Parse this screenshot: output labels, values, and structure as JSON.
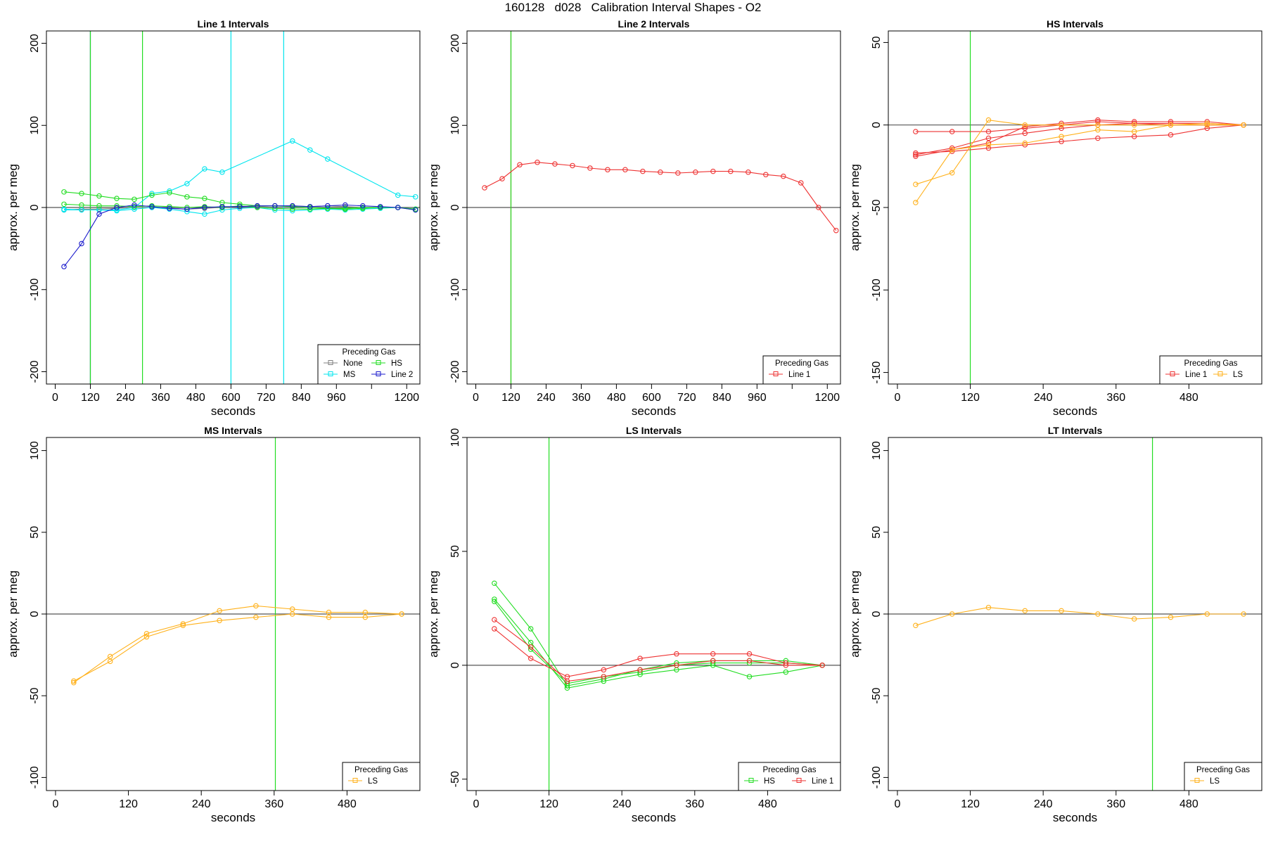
{
  "figure": {
    "title": "160128   d028   Calibration Interval Shapes - O2"
  },
  "colors": {
    "None": "#808080",
    "MS": "#00e5ee",
    "HS": "#22dd22",
    "Line 2": "#1a1acc",
    "Line 1": "#ee3333",
    "LS": "#ffb11b",
    "axis": "#000000",
    "zero": "#555555"
  },
  "chart_data": [
    {
      "title": "Line 1 Intervals",
      "type": "line",
      "xlabel": "seconds",
      "ylabel": "approx. per meg",
      "xlim": [
        -30,
        1245
      ],
      "ylim": [
        -215,
        215
      ],
      "xticks": [
        0,
        120,
        240,
        360,
        480,
        600,
        720,
        840,
        960,
        1080,
        1200
      ],
      "xtick_labels": [
        "0",
        "120",
        "240",
        "360",
        "480",
        "600",
        "720",
        "840",
        "960",
        "",
        "1200"
      ],
      "yticks": [
        -200,
        -100,
        0,
        100,
        200
      ],
      "ytick_labels": [
        "-200",
        "-100",
        "0",
        "100",
        "200"
      ],
      "vlines": [
        {
          "x": 120,
          "color": "#1a1acc"
        },
        {
          "x": 120,
          "color": "#22dd22"
        },
        {
          "x": 298,
          "color": "#22dd22"
        },
        {
          "x": 600,
          "color": "#00e5ee"
        },
        {
          "x": 780,
          "color": "#00e5ee"
        }
      ],
      "legend": {
        "title": "Preceding Gas",
        "position": "bottom-right",
        "columns": 2,
        "entries": [
          "None",
          "HS",
          "MS",
          "Line 2"
        ]
      },
      "series": [
        {
          "name": "None",
          "color": "#808080",
          "x": [
            30,
            90,
            150,
            210,
            270,
            330,
            390,
            450,
            510,
            570,
            630,
            690,
            750,
            810,
            870,
            930,
            990,
            1050,
            1110,
            1170,
            1230
          ],
          "y": [
            -3,
            -2,
            -2,
            -1,
            0,
            0,
            -1,
            -2,
            -1,
            0,
            1,
            1,
            2,
            2,
            1,
            2,
            1,
            0,
            0,
            0,
            -2
          ]
        },
        {
          "name": "MS",
          "color": "#00e5ee",
          "x": [
            30,
            90,
            150,
            210,
            270,
            330,
            390,
            450,
            510,
            570,
            810,
            870,
            930,
            1170,
            1230
          ],
          "y": [
            -2,
            -3,
            -3,
            -3,
            0,
            17,
            20,
            29,
            47,
            43,
            81,
            70,
            59,
            15,
            13
          ]
        },
        {
          "name": "MS",
          "color": "#00e5ee",
          "x": [
            30,
            90,
            150,
            210,
            270,
            330,
            390,
            450,
            510,
            570,
            630,
            690,
            750,
            810,
            870,
            930,
            990,
            1050,
            1110,
            1170,
            1230
          ],
          "y": [
            -3,
            -3,
            -3,
            -4,
            -2,
            0,
            -2,
            -5,
            -8,
            -3,
            -1,
            0,
            -3,
            -4,
            -3,
            -2,
            -3,
            -2,
            -1,
            0,
            -2
          ]
        },
        {
          "name": "HS",
          "color": "#22dd22",
          "x": [
            30,
            90,
            150,
            210,
            270,
            330,
            390,
            450,
            510,
            570,
            630,
            690,
            750,
            810,
            870,
            930,
            990,
            1050,
            1110,
            1170,
            1230
          ],
          "y": [
            19,
            17,
            14,
            11,
            10,
            15,
            18,
            13,
            11,
            6,
            4,
            2,
            2,
            1,
            0,
            -1,
            -1,
            0,
            0,
            0,
            -3
          ]
        },
        {
          "name": "HS",
          "color": "#22dd22",
          "x": [
            30,
            90,
            150,
            210,
            270,
            330,
            390,
            450,
            510,
            570,
            630,
            690,
            750,
            810,
            870,
            930,
            990,
            1050,
            1110,
            1170,
            1230
          ],
          "y": [
            4,
            3,
            2,
            2,
            1,
            2,
            1,
            0,
            1,
            0,
            2,
            0,
            -1,
            -2,
            -2,
            -1,
            -2,
            -1,
            0,
            0,
            -2
          ]
        },
        {
          "name": "Line 2",
          "color": "#1a1acc",
          "x": [
            30,
            90,
            150,
            210,
            270,
            330,
            390,
            450,
            510,
            570,
            630,
            690,
            750,
            810,
            870,
            930,
            990,
            1050,
            1110,
            1170,
            1230
          ],
          "y": [
            -72,
            -44,
            -8,
            0,
            3,
            1,
            -1,
            -2,
            0,
            1,
            1,
            2,
            2,
            2,
            1,
            2,
            3,
            2,
            1,
            0,
            -3
          ]
        }
      ]
    },
    {
      "title": "Line 2 Intervals",
      "type": "line",
      "xlabel": "seconds",
      "ylabel": "approx. per meg",
      "xlim": [
        -30,
        1245
      ],
      "ylim": [
        -215,
        215
      ],
      "xticks": [
        0,
        120,
        240,
        360,
        480,
        600,
        720,
        840,
        960,
        1080,
        1200
      ],
      "xtick_labels": [
        "0",
        "120",
        "240",
        "360",
        "480",
        "600",
        "720",
        "840",
        "960",
        "",
        "1200"
      ],
      "yticks": [
        -200,
        -100,
        0,
        100,
        200
      ],
      "ytick_labels": [
        "-200",
        "-100",
        "0",
        "100",
        "200"
      ],
      "vlines": [
        {
          "x": 120,
          "color": "#ee3333"
        },
        {
          "x": 120,
          "color": "#22dd22"
        }
      ],
      "legend": {
        "title": "Preceding Gas",
        "position": "bottom-right",
        "columns": 1,
        "entries": [
          "Line 1"
        ]
      },
      "series": [
        {
          "name": "Line 1",
          "color": "#ee3333",
          "x": [
            30,
            90,
            150,
            210,
            270,
            330,
            390,
            450,
            510,
            570,
            630,
            690,
            750,
            810,
            870,
            930,
            990,
            1050,
            1110,
            1170,
            1230
          ],
          "y": [
            24,
            35,
            52,
            55,
            53,
            51,
            48,
            46,
            46,
            44,
            43,
            42,
            43,
            44,
            44,
            43,
            40,
            38,
            30,
            0,
            -28
          ]
        }
      ]
    },
    {
      "title": "HS Intervals",
      "type": "line",
      "xlabel": "seconds",
      "ylabel": "approx. per meg",
      "xlim": [
        -15,
        600
      ],
      "ylim": [
        -157,
        57
      ],
      "xticks": [
        0,
        120,
        240,
        360,
        480
      ],
      "xtick_labels": [
        "0",
        "120",
        "240",
        "360",
        "480"
      ],
      "yticks": [
        -150,
        -100,
        -50,
        0,
        50
      ],
      "ytick_labels": [
        "-150",
        "-100",
        "-50",
        "0",
        "50"
      ],
      "vlines": [
        {
          "x": 120,
          "color": "#22dd22"
        }
      ],
      "legend": {
        "title": "Preceding Gas",
        "position": "bottom-right",
        "columns": 2,
        "entries": [
          "Line 1",
          "LS"
        ]
      },
      "series": [
        {
          "name": "Line 1",
          "color": "#ee3333",
          "x": [
            30,
            90,
            150,
            210,
            270,
            330,
            390,
            450,
            510,
            570
          ],
          "y": [
            -4,
            -4,
            -4,
            -2,
            0,
            2,
            1,
            1,
            1,
            0
          ]
        },
        {
          "name": "Line 1",
          "color": "#ee3333",
          "x": [
            30,
            90,
            150,
            210,
            270,
            330,
            390,
            450,
            510,
            570
          ],
          "y": [
            -17,
            -16,
            -14,
            -12,
            -10,
            -8,
            -7,
            -6,
            -2,
            0
          ]
        },
        {
          "name": "Line 1",
          "color": "#ee3333",
          "x": [
            30,
            90,
            150,
            210,
            270,
            330,
            390,
            450,
            510,
            570
          ],
          "y": [
            -18,
            -14,
            -8,
            -5,
            -2,
            0,
            1,
            0,
            0,
            0
          ]
        },
        {
          "name": "Line 1",
          "color": "#ee3333",
          "x": [
            30,
            90,
            150,
            210,
            270,
            330,
            390,
            450,
            510,
            570
          ],
          "y": [
            -19,
            -15,
            -11,
            -1,
            1,
            3,
            2,
            2,
            2,
            0
          ]
        },
        {
          "name": "LS",
          "color": "#ffb11b",
          "x": [
            30,
            90,
            150,
            210,
            270,
            330,
            390,
            450,
            510,
            570
          ],
          "y": [
            -36,
            -29,
            3,
            0,
            0,
            0,
            0,
            0,
            0,
            0
          ]
        },
        {
          "name": "LS",
          "color": "#ffb11b",
          "x": [
            30,
            90,
            150,
            210,
            270,
            330,
            390,
            450,
            510,
            570
          ],
          "y": [
            -47,
            -15,
            -12,
            -11,
            -7,
            -3,
            -4,
            0,
            1,
            0
          ]
        }
      ]
    },
    {
      "title": "MS Intervals",
      "type": "line",
      "xlabel": "seconds",
      "ylabel": "approx. per meg",
      "xlim": [
        -15,
        600
      ],
      "ylim": [
        -108,
        108
      ],
      "xticks": [
        0,
        120,
        240,
        360,
        480
      ],
      "xtick_labels": [
        "0",
        "120",
        "240",
        "360",
        "480"
      ],
      "yticks": [
        -100,
        -50,
        0,
        50,
        100
      ],
      "ytick_labels": [
        "-100",
        "-50",
        "0",
        "50",
        "100"
      ],
      "vlines": [
        {
          "x": 362,
          "color": "#22dd22"
        }
      ],
      "legend": {
        "title": "Preceding Gas",
        "position": "bottom-right",
        "columns": 1,
        "entries": [
          "LS"
        ]
      },
      "series": [
        {
          "name": "LS",
          "color": "#ffb11b",
          "x": [
            30,
            90,
            150,
            210,
            270,
            330,
            390,
            450,
            510,
            570
          ],
          "y": [
            -41,
            -29,
            -14,
            -7,
            -4,
            -2,
            0,
            -2,
            -2,
            0
          ]
        },
        {
          "name": "LS",
          "color": "#ffb11b",
          "x": [
            30,
            90,
            150,
            210,
            270,
            330,
            390,
            450,
            510,
            570
          ],
          "y": [
            -42,
            -26,
            -12,
            -6,
            2,
            5,
            3,
            1,
            1,
            0
          ]
        }
      ]
    },
    {
      "title": "LS Intervals",
      "type": "line",
      "xlabel": "seconds",
      "ylabel": "approx. per meg",
      "xlim": [
        -15,
        600
      ],
      "ylim": [
        -55,
        100
      ],
      "xticks": [
        0,
        120,
        240,
        360,
        480
      ],
      "xtick_labels": [
        "0",
        "120",
        "240",
        "360",
        "480"
      ],
      "yticks": [
        -50,
        0,
        50,
        100
      ],
      "ytick_labels": [
        "-50",
        "0",
        "50",
        "100"
      ],
      "vlines": [
        {
          "x": 120,
          "color": "#22dd22"
        }
      ],
      "legend": {
        "title": "Preceding Gas",
        "position": "bottom-right",
        "columns": 2,
        "entries": [
          "HS",
          "Line 1"
        ]
      },
      "series": [
        {
          "name": "HS",
          "color": "#22dd22",
          "x": [
            30,
            90,
            150,
            210,
            270,
            330,
            390,
            450,
            510,
            570
          ],
          "y": [
            36,
            16,
            -9,
            -6,
            -2,
            1,
            2,
            2,
            2,
            0
          ]
        },
        {
          "name": "HS",
          "color": "#22dd22",
          "x": [
            30,
            90,
            150,
            210,
            270,
            330,
            390,
            450,
            510,
            570
          ],
          "y": [
            29,
            10,
            -10,
            -7,
            -4,
            -2,
            0,
            -5,
            -3,
            0
          ]
        },
        {
          "name": "HS",
          "color": "#22dd22",
          "x": [
            30,
            90,
            150,
            210,
            270,
            330,
            390,
            450,
            510,
            570
          ],
          "y": [
            28,
            7,
            -8,
            -5,
            -3,
            0,
            1,
            1,
            1,
            0
          ]
        },
        {
          "name": "Line 1",
          "color": "#ee3333",
          "x": [
            30,
            90,
            150,
            210,
            270,
            330,
            390,
            450,
            510,
            570
          ],
          "y": [
            20,
            8,
            -7,
            -5,
            -2,
            0,
            2,
            2,
            0,
            0
          ]
        },
        {
          "name": "Line 1",
          "color": "#ee3333",
          "x": [
            30,
            90,
            150,
            210,
            270,
            330,
            390,
            450,
            510,
            570
          ],
          "y": [
            16,
            3,
            -5,
            -2,
            3,
            5,
            5,
            5,
            1,
            0
          ]
        }
      ]
    },
    {
      "title": "LT Intervals",
      "type": "line",
      "xlabel": "seconds",
      "ylabel": "approx. per meg",
      "xlim": [
        -15,
        600
      ],
      "ylim": [
        -108,
        108
      ],
      "xticks": [
        0,
        120,
        240,
        360,
        480
      ],
      "xtick_labels": [
        "0",
        "120",
        "240",
        "360",
        "480"
      ],
      "yticks": [
        -100,
        -50,
        0,
        50,
        100
      ],
      "ytick_labels": [
        "-100",
        "-50",
        "0",
        "50",
        "100"
      ],
      "vlines": [
        {
          "x": 420,
          "color": "#22dd22"
        }
      ],
      "legend": {
        "title": "Preceding Gas",
        "position": "bottom-right",
        "columns": 1,
        "entries": [
          "LS"
        ]
      },
      "series": [
        {
          "name": "LS",
          "color": "#ffb11b",
          "x": [
            30,
            90,
            150,
            210,
            270,
            330,
            390,
            450,
            510,
            570
          ],
          "y": [
            -7,
            0,
            4,
            2,
            2,
            0,
            -3,
            -2,
            0,
            0
          ]
        }
      ]
    }
  ]
}
